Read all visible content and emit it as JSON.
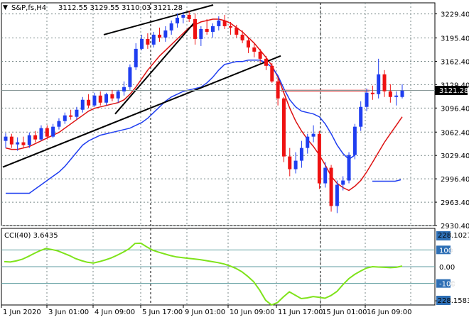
{
  "header": {
    "symbol_label": "S&P,fs,H4",
    "ohlc_values": "3112.55 3129.55 3110.03 3121.28"
  },
  "price_panel": {
    "current_price_label": "3121.28"
  },
  "cci_panel": {
    "label": "CCI(40) 3.6435",
    "top_right_label": "228.1027",
    "bottom_right_label": "-228.1583"
  },
  "colors": {
    "bull_candle": "#1f3ef0",
    "bear_candle": "#ee1111",
    "blue_line": "#1f3ef0",
    "red_line": "#dd1111",
    "black_line": "#000000",
    "cci_line": "#7fe31b",
    "grid": "#7a8a8a",
    "level_line": "#5f9ea0"
  },
  "chart_data": [
    {
      "type": "candlestick",
      "x_tick_labels": [
        "1 Jun 2020",
        "3 Jun 01:00",
        "4 Jun 09:00",
        "5 Jun 17:00",
        "9 Jun 01:00",
        "10 Jun 09:00",
        "11 Jun 17:00",
        "15 Jun 01:00",
        "16 Jun 09:00"
      ],
      "y_tick_labels": [
        "3229.40",
        "3195.40",
        "3162.40",
        "3129.40",
        "3096.40",
        "3062.40",
        "3029.40",
        "2996.40",
        "2963.40",
        "2930.40"
      ],
      "ylim": [
        2930.4,
        3245
      ],
      "grid": true,
      "ohlc": [
        [
          3050,
          3061,
          3040,
          3056
        ],
        [
          3056,
          3060,
          3040,
          3045
        ],
        [
          3045,
          3055,
          3036,
          3048
        ],
        [
          3048,
          3056,
          3040,
          3044
        ],
        [
          3044,
          3062,
          3040,
          3058
        ],
        [
          3058,
          3064,
          3048,
          3052
        ],
        [
          3052,
          3072,
          3050,
          3068
        ],
        [
          3068,
          3072,
          3052,
          3056
        ],
        [
          3056,
          3074,
          3054,
          3070
        ],
        [
          3070,
          3082,
          3066,
          3078
        ],
        [
          3078,
          3090,
          3074,
          3086
        ],
        [
          3086,
          3094,
          3080,
          3084
        ],
        [
          3084,
          3098,
          3080,
          3094
        ],
        [
          3094,
          3112,
          3090,
          3108
        ],
        [
          3108,
          3116,
          3096,
          3100
        ],
        [
          3100,
          3118,
          3098,
          3114
        ],
        [
          3114,
          3120,
          3100,
          3104
        ],
        [
          3104,
          3118,
          3100,
          3116
        ],
        [
          3116,
          3122,
          3106,
          3110
        ],
        [
          3110,
          3122,
          3104,
          3120
        ],
        [
          3120,
          3134,
          3114,
          3126
        ],
        [
          3126,
          3158,
          3122,
          3154
        ],
        [
          3154,
          3188,
          3150,
          3180
        ],
        [
          3180,
          3200,
          3178,
          3194
        ],
        [
          3194,
          3202,
          3180,
          3186
        ],
        [
          3186,
          3204,
          3182,
          3200
        ],
        [
          3200,
          3210,
          3190,
          3196
        ],
        [
          3196,
          3212,
          3190,
          3206
        ],
        [
          3206,
          3220,
          3200,
          3216
        ],
        [
          3216,
          3230,
          3210,
          3224
        ],
        [
          3224,
          3232,
          3216,
          3228
        ],
        [
          3228,
          3234,
          3218,
          3222
        ],
        [
          3222,
          3230,
          3186,
          3194
        ],
        [
          3194,
          3212,
          3184,
          3208
        ],
        [
          3208,
          3222,
          3200,
          3204
        ],
        [
          3204,
          3216,
          3196,
          3212
        ],
        [
          3212,
          3226,
          3206,
          3220
        ],
        [
          3220,
          3228,
          3208,
          3212
        ],
        [
          3212,
          3218,
          3200,
          3210
        ],
        [
          3210,
          3214,
          3196,
          3200
        ],
        [
          3200,
          3206,
          3188,
          3192
        ],
        [
          3192,
          3196,
          3174,
          3182
        ],
        [
          3182,
          3188,
          3168,
          3176
        ],
        [
          3176,
          3180,
          3160,
          3166
        ],
        [
          3166,
          3170,
          3150,
          3156
        ],
        [
          3156,
          3160,
          3132,
          3134
        ],
        [
          3134,
          3140,
          3100,
          3110
        ],
        [
          3110,
          3112,
          3020,
          3028
        ],
        [
          3028,
          3040,
          3000,
          3010
        ],
        [
          3010,
          3034,
          3004,
          3022
        ],
        [
          3022,
          3050,
          3012,
          3040
        ],
        [
          3040,
          3060,
          3032,
          3056
        ],
        [
          3056,
          3072,
          3048,
          3060
        ],
        [
          3060,
          3064,
          2982,
          2990
        ],
        [
          2990,
          3020,
          2984,
          3012
        ],
        [
          3012,
          3016,
          2950,
          2958
        ],
        [
          2958,
          2994,
          2948,
          2988
        ],
        [
          2988,
          3000,
          2980,
          2994
        ],
        [
          2994,
          3034,
          2990,
          3030
        ],
        [
          3030,
          3074,
          3024,
          3070
        ],
        [
          3070,
          3106,
          3064,
          3098
        ],
        [
          3098,
          3124,
          3092,
          3118
        ],
        [
          3118,
          3128,
          3108,
          3116
        ],
        [
          3116,
          3166,
          3110,
          3144
        ],
        [
          3144,
          3150,
          3112,
          3120
        ],
        [
          3120,
          3130,
          3104,
          3112
        ],
        [
          3112,
          3120,
          3100,
          3114
        ],
        [
          3112,
          3130,
          3110,
          3121
        ]
      ],
      "blue_line_values": [
        2976,
        2976,
        2976,
        2976,
        2976,
        2982,
        2988,
        2994,
        3000,
        3006,
        3014,
        3024,
        3034,
        3044,
        3050,
        3054,
        3058,
        3060,
        3062,
        3064,
        3066,
        3068,
        3072,
        3076,
        3082,
        3090,
        3098,
        3106,
        3112,
        3116,
        3120,
        3122,
        3124,
        3126,
        3132,
        3140,
        3150,
        3158,
        3160,
        3162,
        3162,
        3164,
        3164,
        3164,
        3160,
        3154,
        3142,
        3124,
        3108,
        3098,
        3092,
        3090,
        3088,
        3084,
        3074,
        3060,
        3044,
        3032,
        3024,
        3030,
        3040,
        3056,
        3072,
        3086,
        3096,
        3104,
        3110,
        3118
      ],
      "red_line_values": [
        3040,
        3038,
        3038,
        3040,
        3042,
        3046,
        3050,
        3054,
        3058,
        3062,
        3068,
        3074,
        3080,
        3086,
        3092,
        3096,
        3098,
        3100,
        3102,
        3104,
        3108,
        3116,
        3126,
        3138,
        3150,
        3160,
        3170,
        3178,
        3186,
        3194,
        3202,
        3210,
        3214,
        3218,
        3220,
        3222,
        3222,
        3220,
        3216,
        3210,
        3204,
        3196,
        3188,
        3178,
        3168,
        3156,
        3140,
        3118,
        3096,
        3078,
        3064,
        3052,
        3042,
        3030,
        3016,
        3000,
        2990,
        2984,
        2980,
        2986,
        2994,
        3006,
        3020,
        3034,
        3048,
        3060,
        3072,
        3084
      ],
      "blue_fragment_values": [
        2993,
        2993,
        2993,
        2993,
        2993,
        2995
      ],
      "red_horizontal_level": 3121
    },
    {
      "type": "line",
      "title": "CCI(40) 3.6435",
      "y_tick_labels": [
        "228.1027",
        "100",
        "0.00",
        "-100",
        "-228.1583"
      ],
      "ylim": [
        -228.1583,
        228.1027
      ],
      "reference_levels": [
        100,
        0,
        -100
      ],
      "values": [
        30,
        28,
        34,
        44,
        60,
        78,
        95,
        108,
        102,
        94,
        80,
        66,
        48,
        36,
        26,
        22,
        30,
        40,
        52,
        68,
        86,
        106,
        138,
        140,
        118,
        98,
        86,
        76,
        66,
        58,
        54,
        50,
        46,
        42,
        36,
        30,
        24,
        16,
        4,
        -10,
        -30,
        -58,
        -90,
        -140,
        -200,
        -228,
        -214,
        -180,
        -150,
        -170,
        -190,
        -186,
        -178,
        -182,
        -188,
        -172,
        -148,
        -108,
        -72,
        -46,
        -26,
        -8,
        0,
        -2,
        -4,
        -6,
        -4,
        3.6435
      ]
    }
  ]
}
